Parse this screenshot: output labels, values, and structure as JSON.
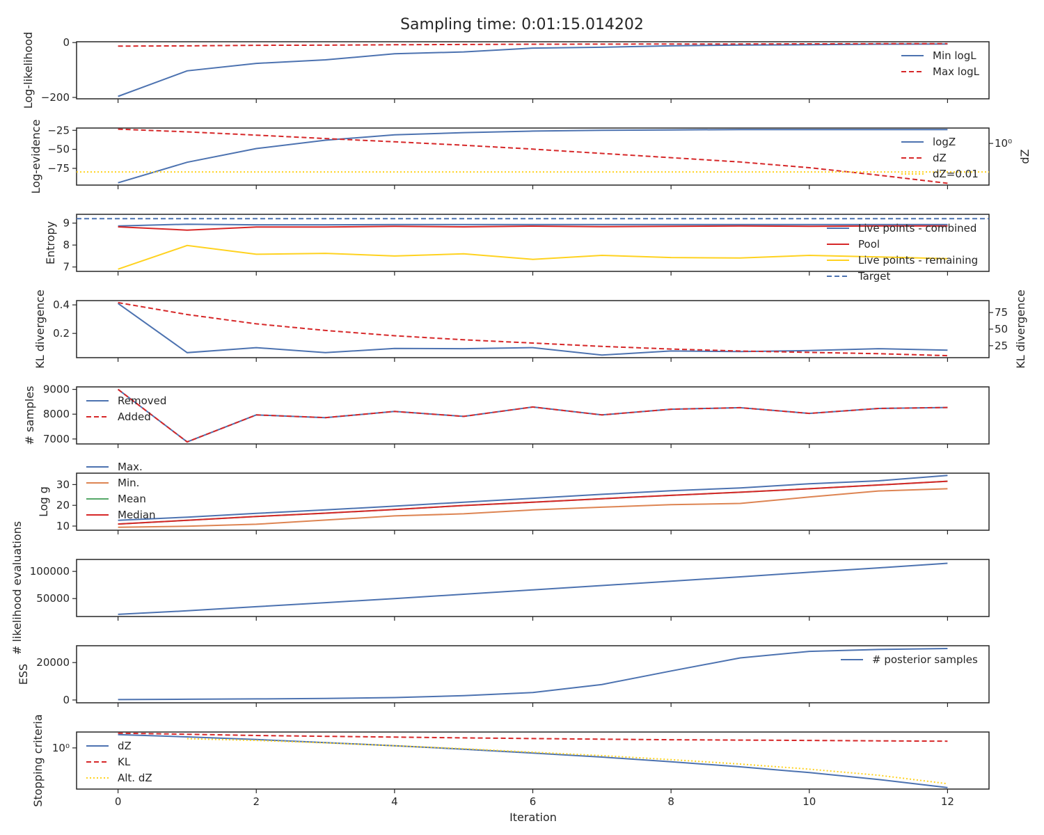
{
  "figure": {
    "title": "Sampling time: 0:01:15.014202",
    "xlabel": "Iteration",
    "x_ticks": [
      0,
      2,
      4,
      6,
      8,
      10,
      12
    ],
    "xlim": [
      -0.6,
      12.6
    ]
  },
  "colors": {
    "blue": "#4c72b0",
    "red": "#d62728",
    "orange": "#dd8452",
    "green": "#55a868",
    "yellow": "#ffd21f",
    "axis": "#262626"
  },
  "chart_data": [
    {
      "type": "line",
      "ylabel": "Log-likelihood",
      "ylim": [
        -205,
        3
      ],
      "y_ticks": [
        0,
        -200
      ],
      "y_tick_labels": [
        "0",
        "−200"
      ],
      "legend_position": "right",
      "x": [
        0,
        1,
        2,
        3,
        4,
        5,
        6,
        7,
        8,
        9,
        10,
        11,
        12
      ],
      "series": [
        {
          "name": "Min logL",
          "style": "solid",
          "color": "#4c72b0",
          "values": [
            -196,
            -103,
            -76,
            -63,
            -41,
            -34,
            -20,
            -17,
            -12,
            -9,
            -8,
            -6,
            -5
          ]
        },
        {
          "name": "Max logL",
          "style": "dashed",
          "color": "#d62728",
          "values": [
            -13,
            -12,
            -10,
            -9.5,
            -8,
            -7,
            -6,
            -5.5,
            -5,
            -5,
            -4.5,
            -4,
            -4
          ]
        }
      ]
    },
    {
      "type": "line",
      "ylabel": "Log-evidence",
      "ylim": [
        -97,
        -22
      ],
      "y_ticks": [
        -25,
        -50,
        -75
      ],
      "y_tick_labels": [
        "−25",
        "−50",
        "−75"
      ],
      "y2label": "dZ",
      "y2_scale": "log",
      "y2_tick_label": "10⁰",
      "legend_position": "right",
      "x": [
        0,
        1,
        2,
        3,
        4,
        5,
        6,
        7,
        8,
        9,
        10,
        11,
        12
      ],
      "series": [
        {
          "name": "logZ",
          "style": "solid",
          "color": "#4c72b0",
          "values": [
            -94,
            -67,
            -49,
            -38,
            -31,
            -28,
            -26,
            -25,
            -24.5,
            -24,
            -24,
            -24,
            -24
          ]
        },
        {
          "name": "dZ",
          "style": "dashed",
          "color": "#d62728",
          "axis": "secondary",
          "values": [
            10,
            6.5,
            3.8,
            2.2,
            1.3,
            0.75,
            0.4,
            0.2,
            0.1,
            0.05,
            0.02,
            0.006,
            0.0016
          ]
        },
        {
          "name": "dZ=0.01",
          "style": "dotted",
          "color": "#ffd21f",
          "axis": "secondary",
          "type": "hline",
          "value": 0.01
        }
      ]
    },
    {
      "type": "line",
      "ylabel": "Entropy",
      "ylim": [
        6.8,
        9.4
      ],
      "y_ticks": [
        9,
        8,
        7
      ],
      "y_tick_labels": [
        "9",
        "8",
        "7"
      ],
      "legend_position": "right",
      "x": [
        0,
        1,
        2,
        3,
        4,
        5,
        6,
        7,
        8,
        9,
        10,
        11,
        12
      ],
      "series": [
        {
          "name": "Live points - combined",
          "style": "solid",
          "color": "#4c72b0",
          "values": [
            8.87,
            8.95,
            8.92,
            8.92,
            8.93,
            8.93,
            8.93,
            8.93,
            8.93,
            8.93,
            8.93,
            8.93,
            8.93
          ]
        },
        {
          "name": "Pool",
          "style": "solid",
          "color": "#d62728",
          "values": [
            8.83,
            8.68,
            8.82,
            8.82,
            8.85,
            8.83,
            8.86,
            8.84,
            8.85,
            8.87,
            8.85,
            8.87,
            8.87
          ]
        },
        {
          "name": "Live points - remaining",
          "style": "solid",
          "color": "#ffd21f",
          "values": [
            6.9,
            7.98,
            7.58,
            7.62,
            7.5,
            7.6,
            7.35,
            7.53,
            7.43,
            7.41,
            7.53,
            7.46,
            7.38
          ]
        },
        {
          "name": "Target",
          "style": "dashed",
          "color": "#4c72b0",
          "type": "hline",
          "value": 9.2
        }
      ]
    },
    {
      "type": "line",
      "ylabel": "KL divergence",
      "ylim": [
        0.03,
        0.43
      ],
      "y_ticks": [
        0.4,
        0.2
      ],
      "y_tick_labels": [
        "0.4",
        "0.2"
      ],
      "y2label": "KL divergence",
      "y2lim": [
        7,
        93
      ],
      "y2_ticks": [
        75,
        50,
        25
      ],
      "y2_tick_labels": [
        "75",
        "50",
        "25"
      ],
      "x": [
        0,
        1,
        2,
        3,
        4,
        5,
        6,
        7,
        8,
        9,
        10,
        11,
        12
      ],
      "series": [
        {
          "style": "solid",
          "color": "#4c72b0",
          "axis": "primary",
          "values": [
            0.41,
            0.065,
            0.1,
            0.065,
            0.095,
            0.093,
            0.1,
            0.048,
            0.077,
            0.073,
            0.08,
            0.093,
            0.082
          ]
        },
        {
          "style": "dashed",
          "color": "#d62728",
          "axis": "secondary",
          "values": [
            90,
            72,
            58,
            48,
            40,
            34,
            29,
            24,
            20,
            17,
            15,
            13,
            10
          ]
        }
      ]
    },
    {
      "type": "line",
      "ylabel": "# samples",
      "ylim": [
        6800,
        9100
      ],
      "y_ticks": [
        9000,
        8000,
        7000
      ],
      "y_tick_labels": [
        "9000",
        "8000",
        "7000"
      ],
      "legend_position": "left",
      "x": [
        0,
        1,
        2,
        3,
        4,
        5,
        6,
        7,
        8,
        9,
        10,
        11,
        12
      ],
      "series": [
        {
          "name": "Removed",
          "style": "solid",
          "color": "#4c72b0",
          "values": [
            9000,
            6880,
            7970,
            7860,
            8110,
            7910,
            8290,
            7970,
            8200,
            8260,
            8030,
            8230,
            8270
          ]
        },
        {
          "name": "Added",
          "style": "dashed",
          "color": "#d62728",
          "values": [
            9000,
            6880,
            7970,
            7860,
            8110,
            7910,
            8290,
            7970,
            8200,
            8260,
            8030,
            8230,
            8270
          ]
        }
      ]
    },
    {
      "type": "line",
      "ylabel": "Log g",
      "ylim": [
        8,
        35.5
      ],
      "y_ticks": [
        30,
        20,
        10
      ],
      "y_tick_labels": [
        "30",
        "20",
        "10"
      ],
      "legend_position": "top-left",
      "x": [
        0,
        1,
        2,
        3,
        4,
        5,
        6,
        7,
        8,
        9,
        10,
        11,
        12
      ],
      "series": [
        {
          "name": "Max.",
          "style": "solid",
          "color": "#4c72b0",
          "values": [
            12.8,
            14.3,
            16.1,
            17.8,
            19.6,
            21.5,
            23.4,
            25.3,
            27,
            28.4,
            30.4,
            31.8,
            34.4
          ]
        },
        {
          "name": "Min.",
          "style": "solid",
          "color": "#dd8452",
          "values": [
            9.4,
            9.9,
            10.9,
            12.9,
            14.9,
            15.9,
            17.8,
            19.1,
            20.3,
            20.9,
            24,
            26.9,
            28
          ]
        },
        {
          "name": "Mean",
          "style": "solid",
          "color": "#55a868",
          "values": [
            11,
            12.8,
            14.6,
            16.2,
            18,
            19.9,
            21.5,
            23.2,
            24.8,
            26.3,
            28,
            29.8,
            31.6
          ]
        },
        {
          "name": "Median",
          "style": "solid",
          "color": "#d62728",
          "values": [
            11,
            12.8,
            14.6,
            16.2,
            18,
            19.9,
            21.5,
            23.2,
            24.8,
            26.3,
            28,
            29.8,
            31.6
          ]
        }
      ]
    },
    {
      "type": "line",
      "ylabel": "# likelihood evaluations",
      "ylim": [
        17000,
        122000
      ],
      "y_ticks": [
        100000,
        50000
      ],
      "y_tick_labels": [
        "100000",
        "50000"
      ],
      "x": [
        0,
        1,
        2,
        3,
        4,
        5,
        6,
        7,
        8,
        9,
        10,
        11,
        12
      ],
      "series": [
        {
          "style": "solid",
          "color": "#4c72b0",
          "values": [
            21000,
            27500,
            35000,
            42500,
            50000,
            58000,
            66000,
            74000,
            82000,
            90000,
            98500,
            106500,
            115000
          ]
        }
      ]
    },
    {
      "type": "line",
      "ylabel": "ESS",
      "ylim": [
        -1500,
        29000
      ],
      "y_ticks": [
        20000,
        0
      ],
      "y_tick_labels": [
        "20000",
        "0"
      ],
      "legend_position": "right",
      "x": [
        0,
        1,
        2,
        3,
        4,
        5,
        6,
        7,
        8,
        9,
        10,
        11,
        12
      ],
      "series": [
        {
          "name": "# posterior samples",
          "style": "solid",
          "color": "#4c72b0",
          "values": [
            200,
            400,
            600,
            800,
            1300,
            2300,
            4000,
            8300,
            15500,
            22500,
            26000,
            27000,
            27500
          ]
        }
      ]
    },
    {
      "type": "line",
      "ylabel": "Stopping criteria",
      "y_scale": "log",
      "y_tick_label": "10⁰",
      "legend_position": "left",
      "series": [
        {
          "name": "dZ",
          "style": "solid",
          "color": "#4c72b0",
          "x": [
            0,
            1,
            2,
            3,
            4,
            5,
            6,
            7,
            8,
            9,
            10,
            11,
            12
          ],
          "values": [
            8,
            5.6,
            3.7,
            2.3,
            1.4,
            0.82,
            0.45,
            0.24,
            0.115,
            0.052,
            0.021,
            0.0072,
            0.002
          ]
        },
        {
          "name": "KL",
          "style": "dashed",
          "color": "#d62728",
          "x": [
            0,
            1,
            2,
            3,
            4,
            5,
            6,
            7,
            8,
            9,
            10,
            11,
            12
          ],
          "values": [
            10,
            8.5,
            7,
            6.1,
            5.4,
            4.8,
            4.3,
            3.9,
            3.6,
            3.4,
            3.2,
            3,
            2.85
          ]
        },
        {
          "name": "Alt. dZ",
          "style": "dotted",
          "color": "#ffd21f",
          "x": [
            1,
            2,
            3,
            4,
            5,
            6,
            7,
            8,
            9,
            10,
            11,
            12
          ],
          "values": [
            4.2,
            3.2,
            2.2,
            1.4,
            0.88,
            0.51,
            0.3,
            0.16,
            0.08,
            0.036,
            0.014,
            0.0037
          ]
        }
      ]
    }
  ]
}
